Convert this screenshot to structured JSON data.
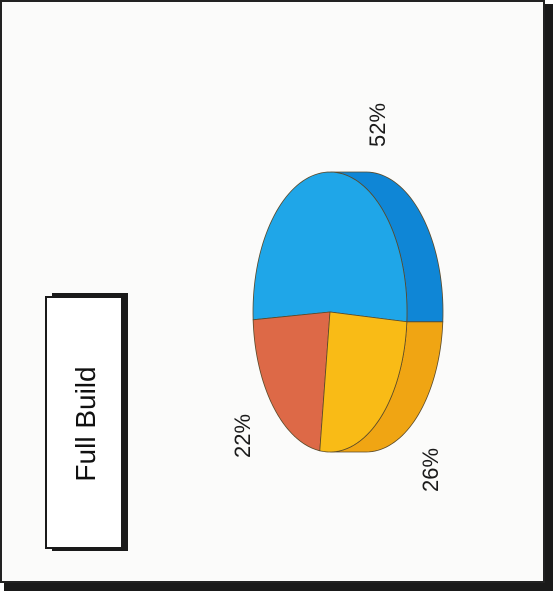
{
  "chart_data": {
    "type": "pie",
    "title": "Full Build",
    "orientation": "rotated-90-counterclockwise",
    "categories": [
      "",
      "",
      ""
    ],
    "values": [
      52,
      26,
      22
    ],
    "value_labels": [
      "52%",
      "26%",
      "22%"
    ],
    "colors": [
      "#1fa6e8",
      "#f9bb16",
      "#dd6947"
    ],
    "side_colors": [
      "#0f86d6",
      "#f0a513",
      "#c95a3a"
    ],
    "style": "3d"
  }
}
